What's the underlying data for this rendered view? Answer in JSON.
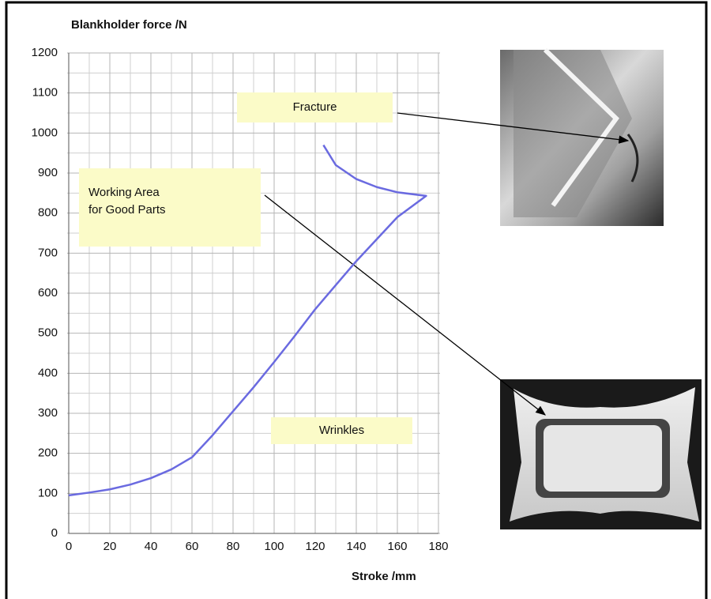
{
  "chart_data": {
    "type": "line",
    "title": "Blankholder force /N",
    "x_label": "Stroke /mm",
    "x": [
      0,
      10,
      20,
      30,
      40,
      50,
      60,
      70,
      80,
      90,
      100,
      110,
      120,
      130,
      140,
      150,
      160,
      174,
      160,
      150,
      140,
      130,
      124
    ],
    "series": [
      {
        "color": "#6a6ae0",
        "values": [
          95,
          102,
          110,
          122,
          138,
          160,
          190,
          245,
          305,
          365,
          428,
          493,
          560,
          620,
          680,
          735,
          790,
          843,
          852,
          865,
          885,
          920,
          970
        ]
      }
    ],
    "xlim": [
      0,
      180
    ],
    "xticks": [
      0,
      20,
      40,
      60,
      80,
      100,
      120,
      140,
      160,
      180
    ],
    "ylim": [
      0,
      1200
    ],
    "yticks": [
      0,
      100,
      200,
      300,
      400,
      500,
      600,
      700,
      800,
      900,
      1000,
      1100,
      1200
    ],
    "grid": true,
    "annotations": [
      "Fracture",
      "Working Area for Good Parts",
      "Wrinkles"
    ]
  }
}
